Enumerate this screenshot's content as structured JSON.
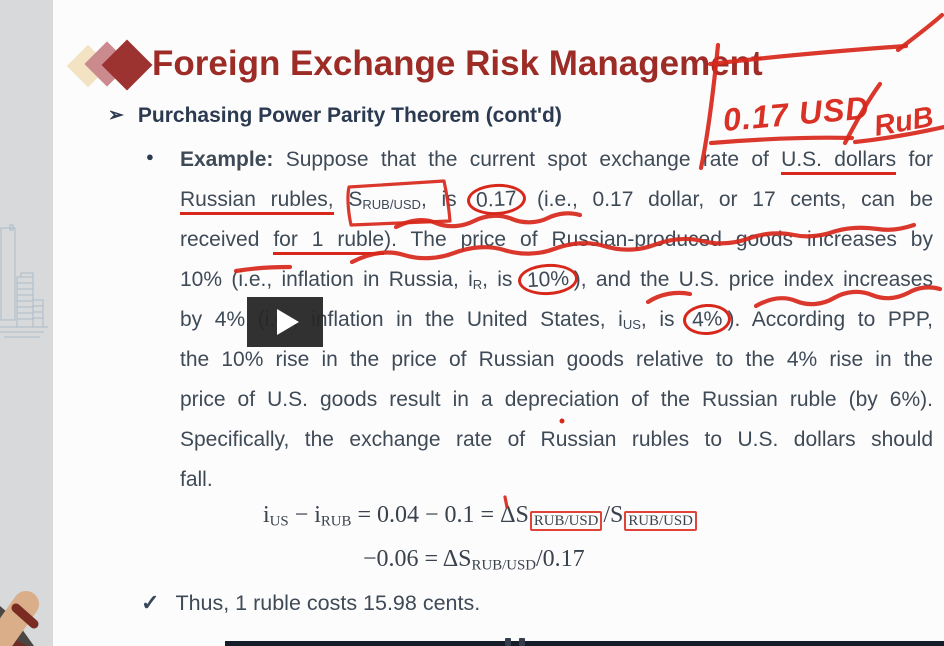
{
  "slide": {
    "title": "Foreign Exchange Risk Management",
    "heading_arrow": "➢",
    "heading": "Purchasing Power Parity Theorem (cont'd)",
    "bullet_glyph": "●",
    "body_lines": [
      [
        {
          "t": "Example:",
          "s": "b"
        },
        {
          "t": " Suppose that the current spot exchange rate of "
        },
        {
          "t": "U.S. dollars",
          "s": "rul"
        },
        {
          "t": " for"
        }
      ],
      [
        {
          "t": "Russian rubles,",
          "s": "rul"
        },
        {
          "t": " S"
        },
        {
          "t": "RUB/USD",
          "s": "sub"
        },
        {
          "t": ", is "
        },
        {
          "t": "0.17",
          "s": "circle"
        },
        {
          "t": " (i.e., 0.17 dollar, or 17 cents, can be"
        }
      ],
      [
        {
          "t": "received "
        },
        {
          "t": "for 1 ruble",
          "s": "rul"
        },
        {
          "t": "). The price of Russian-produced goods increases by"
        }
      ],
      [
        {
          "t": "10% (i.e., inflation in Russia, i"
        },
        {
          "t": "R",
          "s": "sub"
        },
        {
          "t": ", is "
        },
        {
          "t": "10%",
          "s": "circle"
        },
        {
          "t": "), and the U.S. price index increases"
        }
      ],
      [
        {
          "t": "by 4% (i.e., inflation in the United States, i"
        },
        {
          "t": "US",
          "s": "sub"
        },
        {
          "t": ", is "
        },
        {
          "t": "4%",
          "s": "circle"
        },
        {
          "t": "). According to PPP,"
        }
      ],
      [
        {
          "t": "the 10% rise in the price of Russian goods relative to the 4% rise in the"
        }
      ],
      [
        {
          "t": "price of U.S. goods result in a depreciation of the Russian ruble (by 6%)."
        }
      ],
      [
        {
          "t": "Specifically, the exchange rate of Russian rubles to U.S. dollars should"
        }
      ],
      [
        {
          "t": "fall."
        }
      ]
    ],
    "formulas": [
      [
        {
          "t": "i"
        },
        {
          "t": "US",
          "s": "sub"
        },
        {
          "t": " − i"
        },
        {
          "t": "RUB",
          "s": "sub"
        },
        {
          "t": " = 0.04 − 0.1 = ΔS"
        },
        {
          "t": "RUB/USD",
          "s": "sub box"
        },
        {
          "t": "/S"
        },
        {
          "t": "RUB/USD",
          "s": "sub box"
        }
      ],
      [
        {
          "t": "−0.06 = ΔS"
        },
        {
          "t": "RUB/USD",
          "s": "sub"
        },
        {
          "t": "/0.17"
        }
      ]
    ],
    "check_glyph": "✓",
    "conclusion": "Thus, 1 ruble costs 15.98 cents."
  },
  "annotations": {
    "rate_note": "0.17 USD",
    "rate_denominator": "RuB"
  },
  "colors": {
    "pen_red": "#d8271b",
    "title_maroon": "#9d2b26",
    "heading_navy": "#2b3a50",
    "body_text": "#3f4a57"
  }
}
